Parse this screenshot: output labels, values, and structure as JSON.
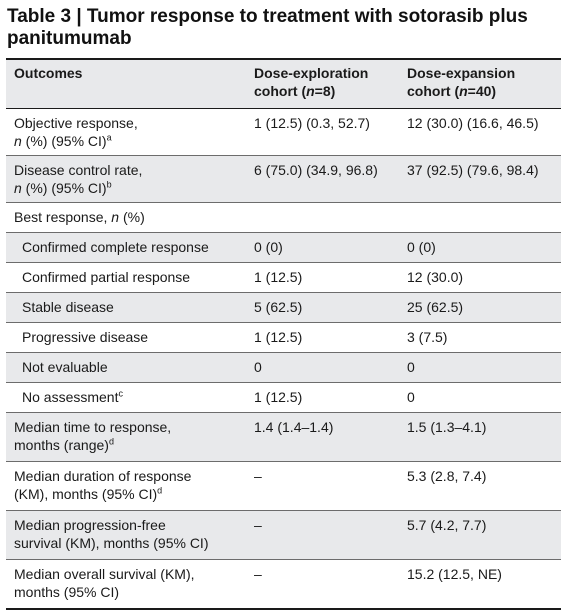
{
  "title": "Table 3 | Tumor response to treatment with sotorasib plus panitumumab",
  "headers": {
    "outcomes": "Outcomes",
    "c2_line1": "Dose-exploration",
    "c2_pre": "cohort (",
    "c2_n": "n",
    "c2_post": "=8)",
    "c3_line1": "Dose-expansion",
    "c3_pre": "cohort (",
    "c3_n": "n",
    "c3_post": "=40)"
  },
  "rows": {
    "objective": {
      "l1": "Objective response,",
      "l2_italic": "n",
      "l2_rest": " (%) (95% CI)",
      "sup": "a",
      "v1": "1 (12.5) (0.3, 52.7)",
      "v2": "12 (30.0) (16.6, 46.5)"
    },
    "dcr": {
      "l1": "Disease control rate,",
      "l2_italic": "n",
      "l2_rest": " (%) (95% CI)",
      "sup": "b",
      "v1": "6 (75.0) (34.9, 96.8)",
      "v2": "37 (92.5) (79.6, 98.4)"
    },
    "best": {
      "pre": "Best response, ",
      "italic": "n",
      "post": " (%)"
    },
    "ccr": {
      "label": "Confirmed complete response",
      "v1": "0 (0)",
      "v2": "0 (0)"
    },
    "cpr": {
      "label": "Confirmed partial response",
      "v1": "1 (12.5)",
      "v2": "12 (30.0)"
    },
    "sd": {
      "label": "Stable disease",
      "v1": "5 (62.5)",
      "v2": "25 (62.5)"
    },
    "pd": {
      "label": "Progressive disease",
      "v1": "1 (12.5)",
      "v2": "3 (7.5)"
    },
    "ne": {
      "label": "Not evaluable",
      "v1": "0",
      "v2": "0"
    },
    "na": {
      "label": "No assessment",
      "sup": "c",
      "v1": "1 (12.5)",
      "v2": "0"
    },
    "ttr": {
      "l1": "Median time to response,",
      "l2": "months (range)",
      "sup": "d",
      "v1": "1.4 (1.4–1.4)",
      "v2": "1.5 (1.3–4.1)"
    },
    "dor": {
      "l1": "Median duration of response",
      "l2": "(KM), months (95% CI)",
      "sup": "d",
      "v1": "–",
      "v2": "5.3 (2.8, 7.4)"
    },
    "pfs": {
      "l1": "Median progression-free",
      "l2": "survival (KM), months (95% CI)",
      "v1": "–",
      "v2": "5.7 (4.2, 7.7)"
    },
    "os": {
      "l1": "Median overall survival (KM),",
      "l2": "months (95% CI)",
      "v1": "–",
      "v2": "15.2 (12.5, NE)"
    }
  }
}
